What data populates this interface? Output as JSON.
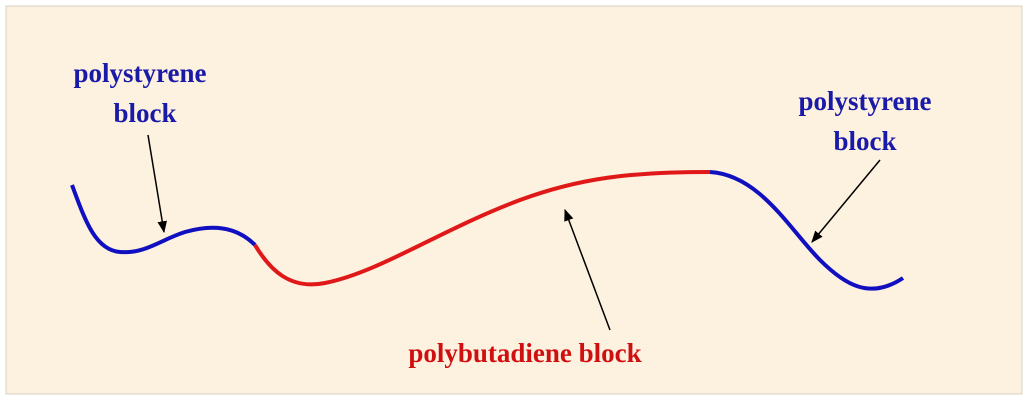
{
  "labels": {
    "left": [
      "polystyrene",
      "block"
    ],
    "right": [
      "polystyrene",
      "block"
    ],
    "middle": "polybutadiene block"
  }
}
